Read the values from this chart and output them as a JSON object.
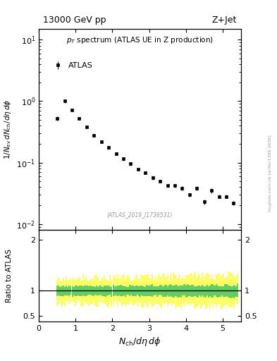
{
  "title_left": "13000 GeV pp",
  "title_right": "Z+Jet",
  "legend_label": "ATLAS",
  "watermark": "(ATLAS_2019_I1736531)",
  "arxiv": "mcplots.cern.ch [arXiv:1306.3436]",
  "main_data_x": [
    0.5,
    0.7,
    0.9,
    1.1,
    1.3,
    1.5,
    1.7,
    1.9,
    2.1,
    2.3,
    2.5,
    2.7,
    2.9,
    3.1,
    3.3,
    3.5,
    3.7,
    3.9,
    4.1,
    4.3,
    4.5,
    4.7,
    4.9,
    5.1,
    5.3
  ],
  "main_data_y": [
    0.52,
    1.0,
    0.72,
    0.52,
    0.38,
    0.28,
    0.22,
    0.175,
    0.14,
    0.115,
    0.095,
    0.078,
    0.068,
    0.057,
    0.05,
    0.042,
    0.042,
    0.038,
    0.03,
    0.038,
    0.023,
    0.035,
    0.028,
    0.028,
    0.022
  ],
  "main_data_yerr": [
    0.04,
    0.06,
    0.04,
    0.03,
    0.02,
    0.015,
    0.012,
    0.01,
    0.008,
    0.007,
    0.006,
    0.005,
    0.004,
    0.004,
    0.003,
    0.003,
    0.003,
    0.003,
    0.002,
    0.003,
    0.002,
    0.003,
    0.002,
    0.002,
    0.002
  ],
  "ylim_main": [
    0.008,
    15
  ],
  "ylim_ratio": [
    0.4,
    2.2
  ],
  "xlim": [
    0,
    5.5
  ],
  "color_marker": "black",
  "color_green": "#66CC66",
  "color_yellow": "#FFFF66",
  "background_color": "#ffffff",
  "ratio_seed": 42,
  "ratio_n_bins": 120,
  "ratio_x_start": 0.5,
  "ratio_x_end": 5.4,
  "ratio_green_inner_half": 0.07,
  "ratio_yellow_outer_half": 0.18,
  "ratio_green_noise": 0.04,
  "ratio_yellow_noise": 0.12,
  "ratio_spread_growth": 0.06
}
